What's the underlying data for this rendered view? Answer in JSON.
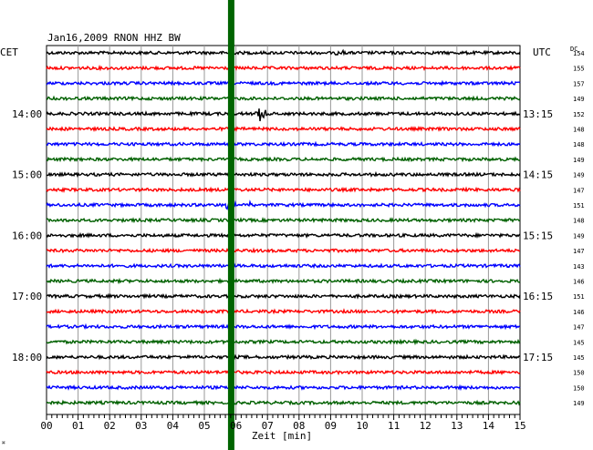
{
  "chart_data": {
    "type": "line",
    "title": "Jan16,2009   RNON HHZ BW",
    "left_timezone": "CET",
    "right_timezone": "UTC",
    "dc_label": "DC",
    "xlabel": "Zeit [min]",
    "xlim": [
      0,
      15
    ],
    "x_ticks": [
      "00",
      "01",
      "02",
      "03",
      "04",
      "05",
      "06",
      "07",
      "08",
      "09",
      "10",
      "11",
      "12",
      "13",
      "14",
      "15"
    ],
    "trace_count": 24,
    "trace_colors": [
      "#000000",
      "#ff0000",
      "#0000ff",
      "#006000"
    ],
    "highlight_color": "#006400",
    "highlight_minute": 5.85,
    "left_hour_labels": [
      {
        "trace": 4,
        "label": "14:00"
      },
      {
        "trace": 8,
        "label": "15:00"
      },
      {
        "trace": 12,
        "label": "16:00"
      },
      {
        "trace": 16,
        "label": "17:00"
      },
      {
        "trace": 20,
        "label": "18:00"
      }
    ],
    "right_hour_labels": [
      {
        "trace": 4,
        "label": "13:15"
      },
      {
        "trace": 8,
        "label": "14:15"
      },
      {
        "trace": 12,
        "label": "15:15"
      },
      {
        "trace": 16,
        "label": "16:15"
      },
      {
        "trace": 20,
        "label": "17:15"
      }
    ],
    "dc_values": [
      154,
      155,
      157,
      149,
      152,
      148,
      148,
      149,
      149,
      147,
      151,
      148,
      149,
      147,
      143,
      146,
      151,
      146,
      147,
      145,
      145,
      150,
      150,
      149
    ],
    "events": [
      {
        "trace": 0,
        "minute": 9.3,
        "amplitude": 3
      },
      {
        "trace": 4,
        "minute": 6.8,
        "amplitude": 8
      },
      {
        "trace": 10,
        "minute": 5.8,
        "amplitude": 7
      },
      {
        "trace": 10,
        "minute": 6.5,
        "amplitude": 4
      }
    ],
    "grid": true
  },
  "corner_mark": "⌘"
}
